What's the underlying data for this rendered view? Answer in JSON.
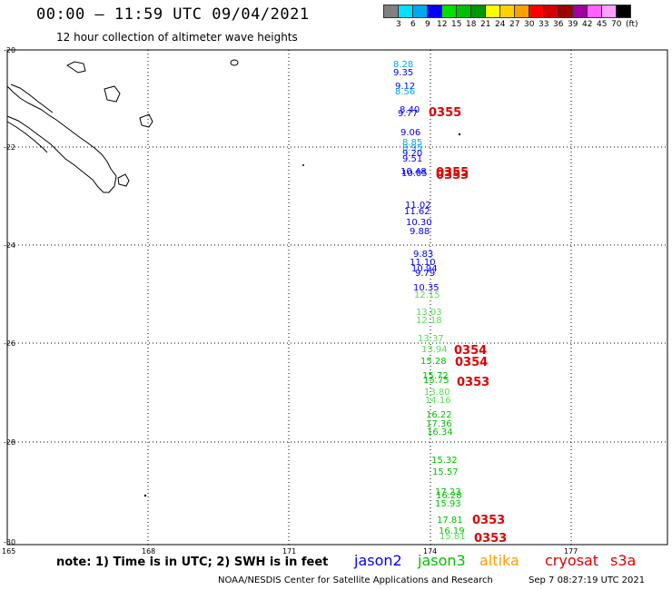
{
  "header": {
    "title": "00:00 – 11:59 UTC 09/04/2021",
    "subtitle": "12 hour collection of altimeter wave heights"
  },
  "color_scale": {
    "colors": [
      "#808080",
      "#00e0ff",
      "#00a8f0",
      "#0000ff",
      "#00e000",
      "#00c000",
      "#009600",
      "#ffff00",
      "#ffd000",
      "#ffa000",
      "#ff0000",
      "#d00000",
      "#a00000",
      "#a000a0",
      "#ff60ff",
      "#ffa0ff",
      "#000000"
    ],
    "labels": [
      "3",
      "6",
      "9",
      "12",
      "15",
      "18",
      "21",
      "24",
      "27",
      "30",
      "33",
      "36",
      "39",
      "42",
      "45",
      "70",
      "(ft)"
    ]
  },
  "map": {
    "lat_labels": [
      "-20",
      "-22",
      "-24",
      "-26",
      "-28",
      "-30"
    ],
    "lon_labels": [
      "165",
      "168",
      "171",
      "174",
      "177"
    ],
    "points": [
      {
        "text": "8.28",
        "color": "#00a8f0"
      },
      {
        "text": "9.35",
        "color": "#0000ff"
      },
      {
        "text": "9.12",
        "color": "#0000ff"
      },
      {
        "text": "8.56",
        "color": "#00a8f0"
      },
      {
        "text": "8.40",
        "color": "#0000ff"
      },
      {
        "text": "9.77",
        "color": "#0000ff"
      },
      {
        "text": "9.06",
        "color": "#0000ff"
      },
      {
        "text": "8.85",
        "color": "#00a8f0"
      },
      {
        "text": "8.95",
        "color": "#00a8f0"
      },
      {
        "text": "9.20",
        "color": "#0000ff"
      },
      {
        "text": "9.51",
        "color": "#0000ff"
      },
      {
        "text": "10.48",
        "color": "#0000ff"
      },
      {
        "text": "10.05",
        "color": "#0000ff"
      },
      {
        "text": "11.02",
        "color": "#0000ff"
      },
      {
        "text": "11.62",
        "color": "#0000ff"
      },
      {
        "text": "10.30",
        "color": "#0000ff"
      },
      {
        "text": "9.88",
        "color": "#0000ff"
      },
      {
        "text": "9.83",
        "color": "#0000ff"
      },
      {
        "text": "11.10",
        "color": "#0000ff"
      },
      {
        "text": "10.94",
        "color": "#0000ff"
      },
      {
        "text": "9.79",
        "color": "#0000ff"
      },
      {
        "text": "10.35",
        "color": "#0000ff"
      },
      {
        "text": "12.15",
        "color": "#55e055"
      },
      {
        "text": "13.03",
        "color": "#55e055"
      },
      {
        "text": "12.18",
        "color": "#55e055"
      },
      {
        "text": "13.37",
        "color": "#55e055"
      },
      {
        "text": "13.94",
        "color": "#55e055"
      },
      {
        "text": "15.28",
        "color": "#00c000"
      },
      {
        "text": "15.72",
        "color": "#00c000"
      },
      {
        "text": "15.75",
        "color": "#00c000"
      },
      {
        "text": "13.80",
        "color": "#55e055"
      },
      {
        "text": "14.16",
        "color": "#55e055"
      },
      {
        "text": "16.22",
        "color": "#00c000"
      },
      {
        "text": "17.36",
        "color": "#00c000"
      },
      {
        "text": "16.34",
        "color": "#00c000"
      },
      {
        "text": "15.32",
        "color": "#00c000"
      },
      {
        "text": "15.57",
        "color": "#00c000"
      },
      {
        "text": "17.23",
        "color": "#00c000"
      },
      {
        "text": "16.28",
        "color": "#00c000"
      },
      {
        "text": "15.93",
        "color": "#00c000"
      },
      {
        "text": "17.81",
        "color": "#00c000"
      },
      {
        "text": "16.19",
        "color": "#00c000"
      },
      {
        "text": "15.81",
        "color": "#55e055"
      }
    ],
    "pass_labels": [
      {
        "text": "0355",
        "color": "#e00000"
      },
      {
        "text": "0355",
        "color": "#e00000"
      },
      {
        "text": "0353",
        "color": "#e00000"
      },
      {
        "text": "0354",
        "color": "#e00000"
      },
      {
        "text": "0354",
        "color": "#e00000"
      },
      {
        "text": "0353",
        "color": "#e00000"
      },
      {
        "text": "0353",
        "color": "#e00000"
      },
      {
        "text": "0353",
        "color": "#e00000"
      }
    ]
  },
  "legend": {
    "note": "note:  1) Time is in UTC; 2) SWH is in feet",
    "jason2": "jason2",
    "jason3": "jason3",
    "altika": "altika",
    "cryosat": "cryosat",
    "s3a": "s3a",
    "jason2_color": "#0000ff",
    "jason3_color": "#00c000",
    "altika_color": "#ffa000",
    "cryosat_color": "#e00000",
    "s3a_color": "#e00000"
  },
  "footer": {
    "credit": "NOAA/NESDIS Center for Satellite Applications and Research",
    "timestamp": "Sep  7 08:27:19 UTC 2021"
  }
}
